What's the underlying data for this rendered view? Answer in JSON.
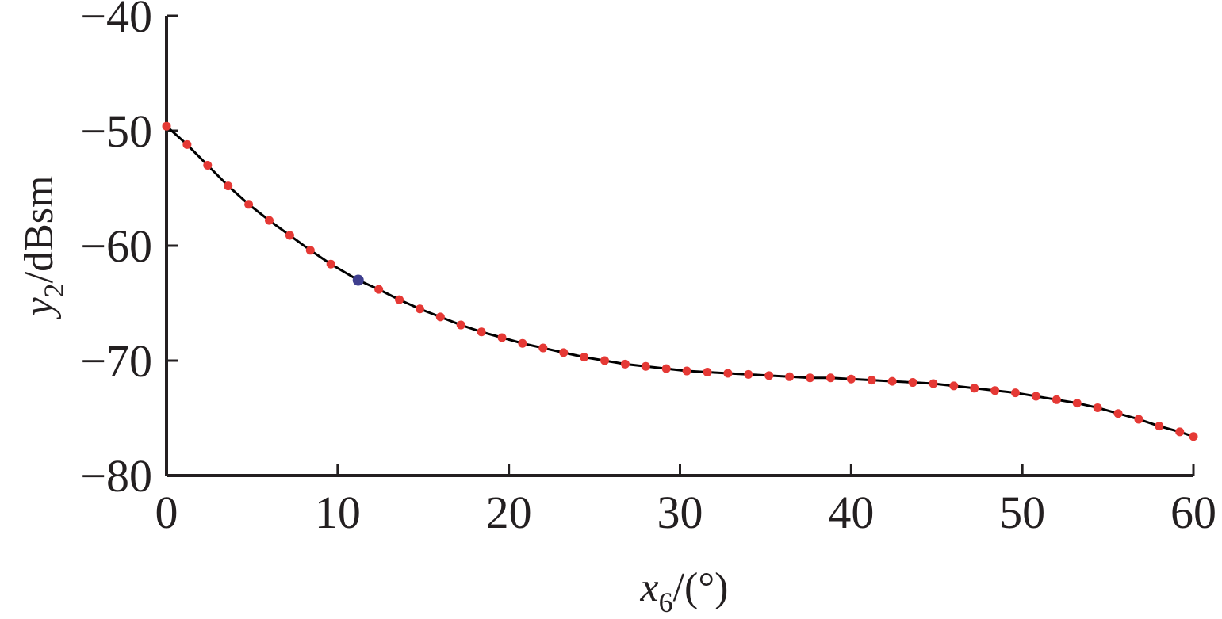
{
  "chart_data": {
    "type": "line",
    "title": "",
    "xlabel": {
      "var": "x",
      "sub": "6",
      "unit": "/(°)"
    },
    "ylabel": {
      "var": "y",
      "sub": "2",
      "unit": "/dBsm"
    },
    "xlim": [
      0,
      60
    ],
    "ylim": [
      -80,
      -40
    ],
    "x_ticks": [
      0,
      10,
      20,
      30,
      40,
      50,
      60
    ],
    "x_tick_labels": [
      "0",
      "10",
      "20",
      "30",
      "40",
      "50",
      "60"
    ],
    "y_ticks": [
      -80,
      -70,
      -60,
      -50,
      -40
    ],
    "y_tick_labels": [
      "−80",
      "−70",
      "−60",
      "−50",
      "−40"
    ],
    "grid": false,
    "series": [
      {
        "style": "line",
        "color": "#000000",
        "x": [
          0,
          1.2,
          2.4,
          3.6,
          4.8,
          6,
          7.2,
          8.4,
          9.6,
          11.2,
          12.4,
          13.6,
          14.8,
          16,
          17.2,
          18.4,
          19.6,
          20.8,
          22,
          23.2,
          24.4,
          25.6,
          26.8,
          28,
          29.2,
          30.4,
          31.6,
          32.8,
          34,
          35.2,
          36.4,
          37.6,
          38.8,
          40,
          41.2,
          42.4,
          43.6,
          44.8,
          46,
          47.2,
          48.4,
          49.6,
          50.8,
          52,
          53.2,
          54.4,
          55.6,
          56.8,
          58,
          59.2,
          60
        ],
        "y": [
          -49.6,
          -51.2,
          -53,
          -54.8,
          -56.4,
          -57.8,
          -59.1,
          -60.4,
          -61.6,
          -63,
          -63.8,
          -64.7,
          -65.5,
          -66.2,
          -66.9,
          -67.5,
          -68,
          -68.5,
          -68.9,
          -69.3,
          -69.7,
          -70,
          -70.3,
          -70.5,
          -70.7,
          -70.9,
          -71,
          -71.1,
          -71.2,
          -71.3,
          -71.4,
          -71.5,
          -71.5,
          -71.6,
          -71.7,
          -71.8,
          -71.9,
          -72,
          -72.2,
          -72.4,
          -72.6,
          -72.8,
          -73.1,
          -73.4,
          -73.7,
          -74.1,
          -74.6,
          -75.1,
          -75.7,
          -76.2,
          -76.6
        ]
      },
      {
        "style": "markers",
        "color": "#e53935",
        "x": [
          0,
          1.2,
          2.4,
          3.6,
          4.8,
          6,
          7.2,
          8.4,
          9.6,
          12.4,
          13.6,
          14.8,
          16,
          17.2,
          18.4,
          19.6,
          20.8,
          22,
          23.2,
          24.4,
          25.6,
          26.8,
          28,
          29.2,
          30.4,
          31.6,
          32.8,
          34,
          35.2,
          36.4,
          37.6,
          38.8,
          40,
          41.2,
          42.4,
          43.6,
          44.8,
          46,
          47.2,
          48.4,
          49.6,
          50.8,
          52,
          53.2,
          54.4,
          55.6,
          56.8,
          58,
          59.2,
          60
        ],
        "y": [
          -49.6,
          -51.2,
          -53,
          -54.8,
          -56.4,
          -57.8,
          -59.1,
          -60.4,
          -61.6,
          -63.8,
          -64.7,
          -65.5,
          -66.2,
          -66.9,
          -67.5,
          -68,
          -68.5,
          -68.9,
          -69.3,
          -69.7,
          -70,
          -70.3,
          -70.5,
          -70.7,
          -70.9,
          -71,
          -71.1,
          -71.2,
          -71.3,
          -71.4,
          -71.5,
          -71.5,
          -71.6,
          -71.7,
          -71.8,
          -71.9,
          -72,
          -72.2,
          -72.4,
          -72.6,
          -72.8,
          -73.1,
          -73.4,
          -73.7,
          -74.1,
          -74.6,
          -75.1,
          -75.7,
          -76.2,
          -76.6
        ]
      },
      {
        "style": "markers",
        "color": "#3f3f8f",
        "x": [
          11.2
        ],
        "y": [
          -63
        ]
      }
    ]
  }
}
